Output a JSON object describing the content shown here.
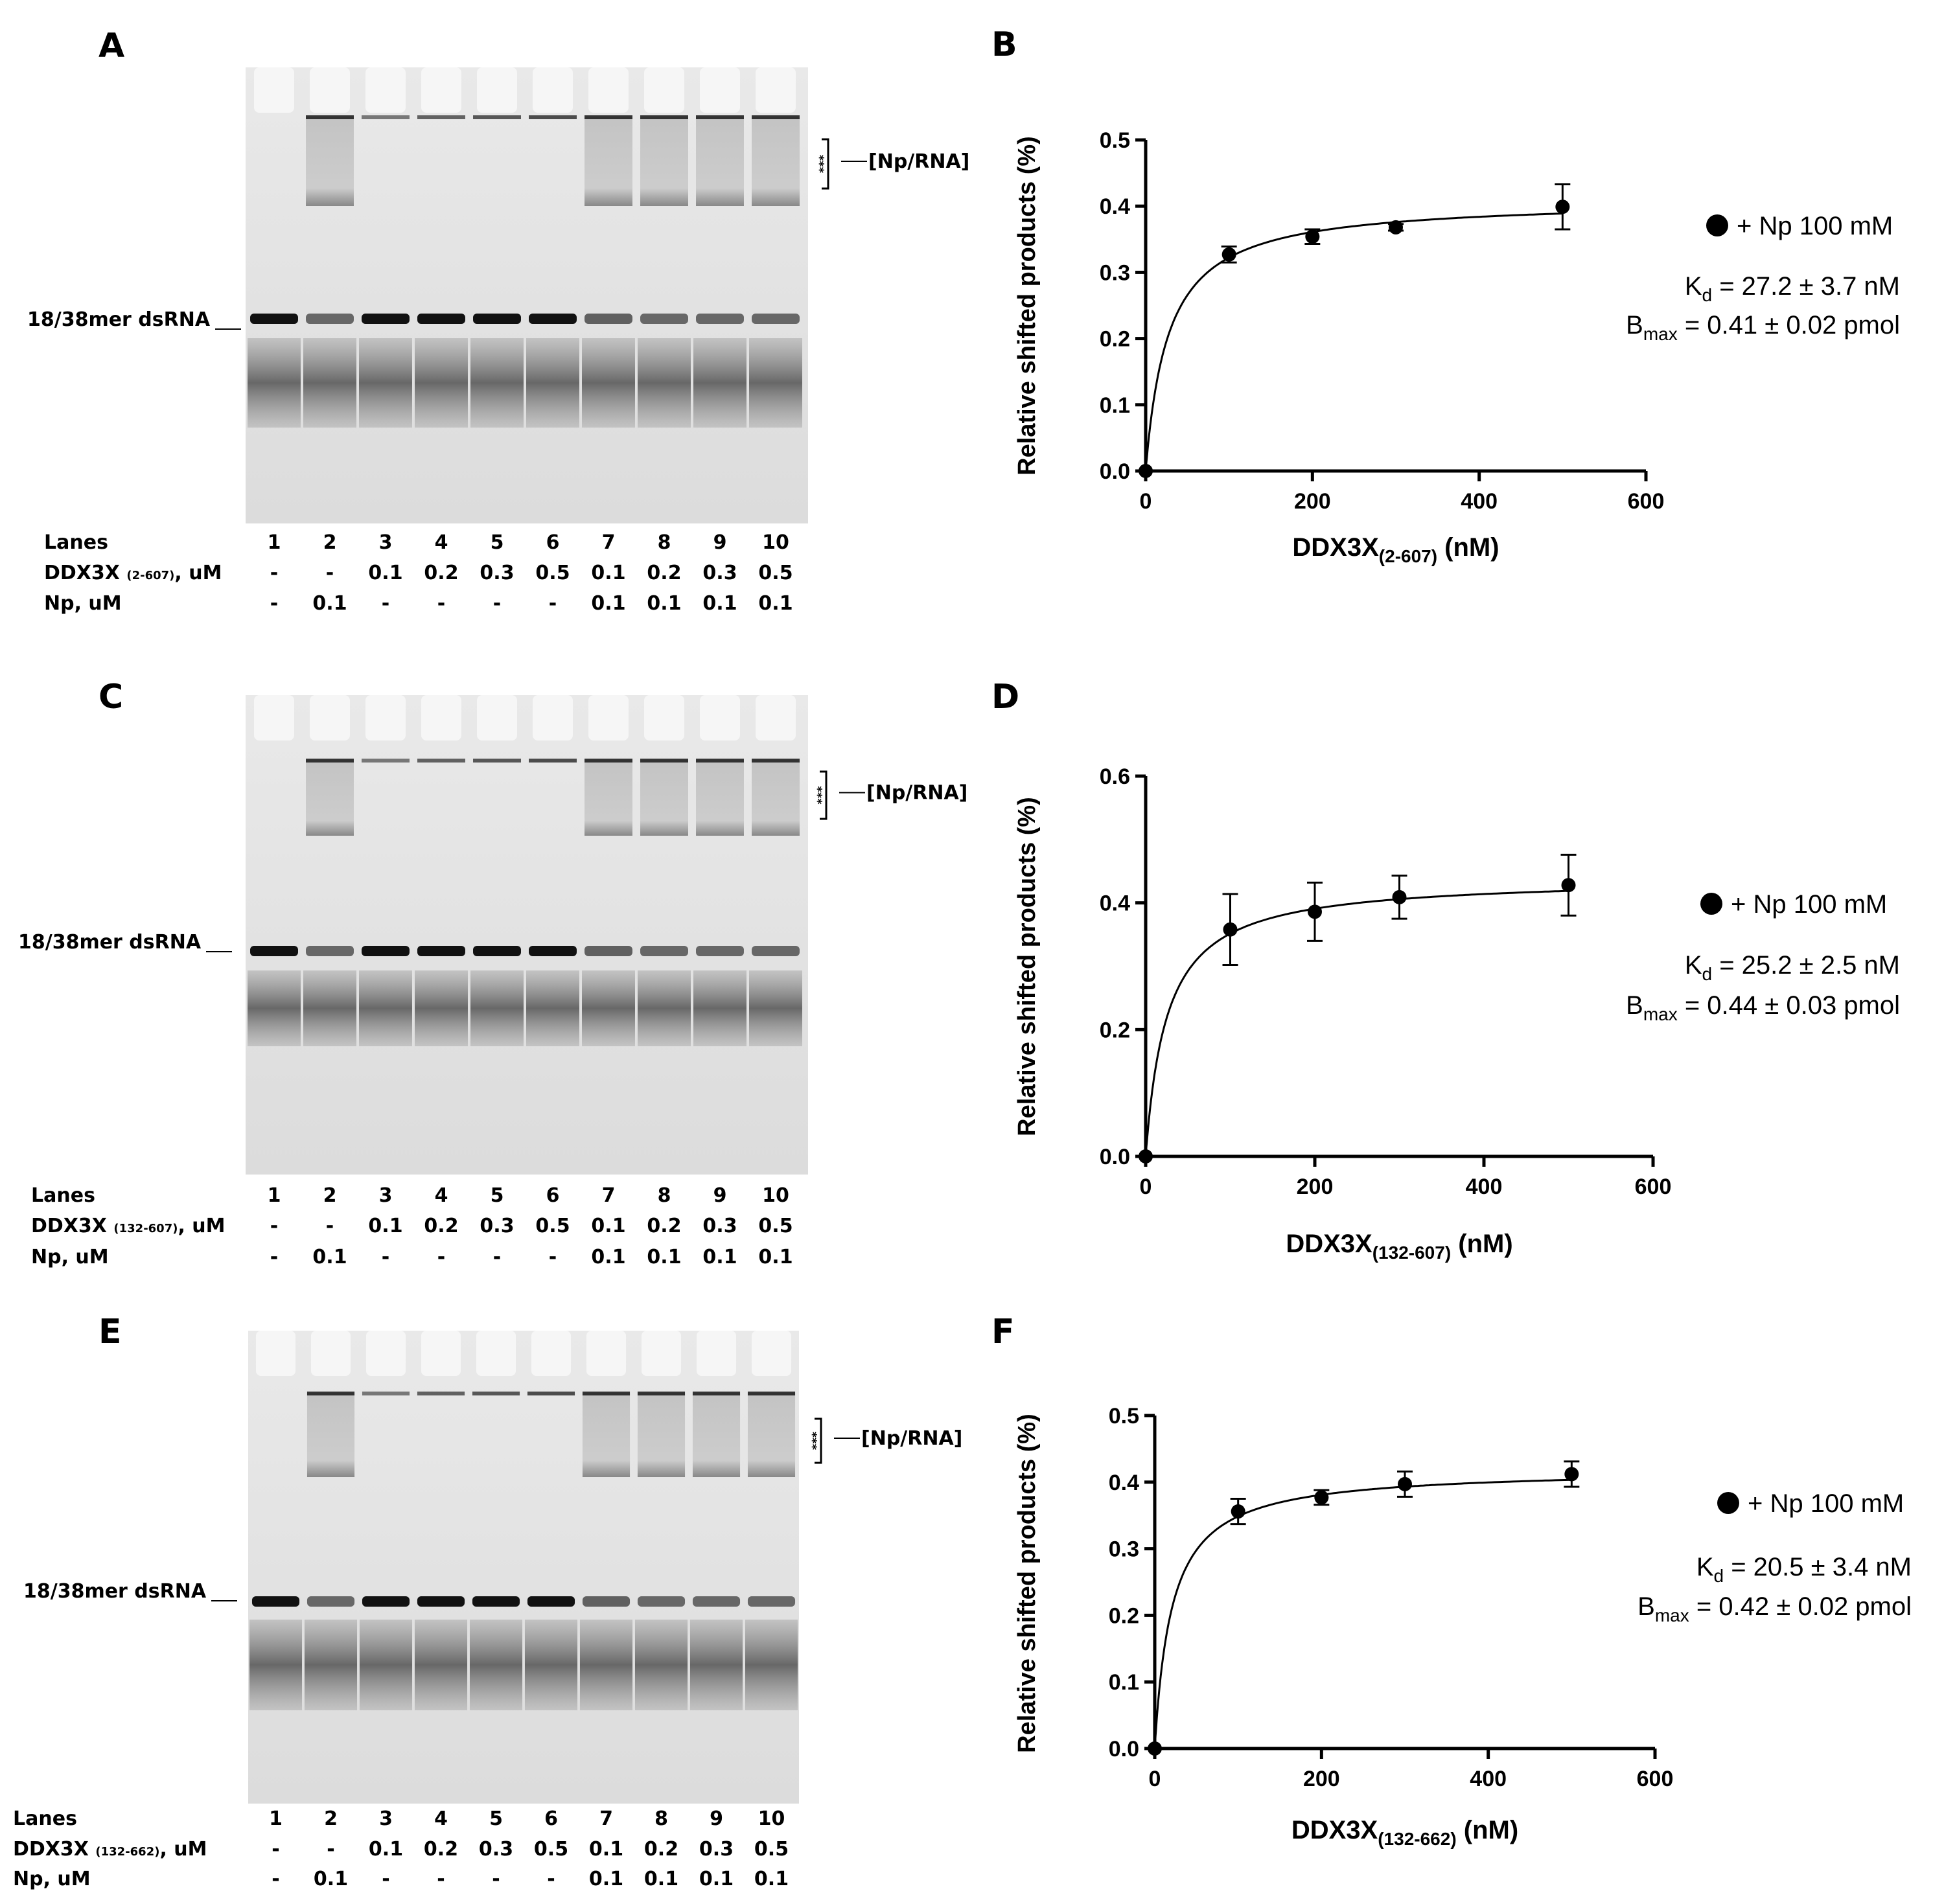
{
  "common": {
    "band_label": "18/38mer dsRNA",
    "complex_label": "[Np/RNA]",
    "stars": "***",
    "lanes_label": "Lanes",
    "np_label": "Np, uM",
    "ylabel": "Relative shifted products (%)",
    "legend_label": "+ Np 100 mM",
    "kd_prefix": "K",
    "kd_sub": "d",
    "bmax_prefix": "B",
    "bmax_sub": "max",
    "lanes": [
      "1",
      "2",
      "3",
      "4",
      "5",
      "6",
      "7",
      "8",
      "9",
      "10"
    ],
    "ddx_values": [
      "-",
      "-",
      "0.1",
      "0.2",
      "0.3",
      "0.5",
      "0.1",
      "0.2",
      "0.3",
      "0.5"
    ],
    "np_values": [
      "-",
      "0.1",
      "-",
      "-",
      "-",
      "-",
      "0.1",
      "0.1",
      "0.1",
      "0.1"
    ]
  },
  "gels": [
    {
      "panel": "A",
      "ddx_label_pre": "DDX3X ",
      "ddx_label_sub": "(2-607)",
      "ddx_label_post": ", uM"
    },
    {
      "panel": "C",
      "ddx_label_pre": "DDX3X ",
      "ddx_label_sub": "(132-607)",
      "ddx_label_post": ", uM"
    },
    {
      "panel": "E",
      "ddx_label_pre": "DDX3X ",
      "ddx_label_sub": "(132-662)",
      "ddx_label_post": ", uM"
    }
  ],
  "chart_data": [
    {
      "panel": "B",
      "type": "scatter",
      "title": "",
      "xlabel_main": "DDX3X",
      "xlabel_sub": "(2-607)",
      "xlabel_unit": " (nM)",
      "ylabel": "Relative shifted products (%)",
      "xlim": [
        0,
        600
      ],
      "ylim": [
        0,
        0.5
      ],
      "xticks": [
        0,
        200,
        400,
        600
      ],
      "yticks": [
        0.0,
        0.1,
        0.2,
        0.3,
        0.4,
        0.5
      ],
      "ytick_labels": [
        "0.0",
        "0.1",
        "0.2",
        "0.3",
        "0.4",
        "0.5"
      ],
      "series": [
        {
          "name": "+ Np 100 mM",
          "x": [
            0,
            100,
            200,
            300,
            500
          ],
          "y": [
            0.0,
            0.327,
            0.354,
            0.368,
            0.399
          ],
          "err": [
            0,
            0.012,
            0.011,
            0.005,
            0.034
          ]
        }
      ],
      "fit": {
        "model": "one-site saturation",
        "kd": 27.2,
        "bmax": 0.41
      },
      "kd_text": " = 27.2 ± 3.7 nM",
      "bmax_text": " =  0.41 ± 0.02 pmol",
      "grid": false,
      "legend": "right"
    },
    {
      "panel": "D",
      "type": "scatter",
      "title": "",
      "xlabel_main": "DDX3X",
      "xlabel_sub": "(132-607)",
      "xlabel_unit": " (nM)",
      "ylabel": "Relative shifted products (%)",
      "xlim": [
        0,
        600
      ],
      "ylim": [
        0,
        0.6
      ],
      "xticks": [
        0,
        200,
        400,
        600
      ],
      "yticks": [
        0.0,
        0.2,
        0.4,
        0.6
      ],
      "ytick_labels": [
        "0.0",
        "0.2",
        "0.4",
        "0.6"
      ],
      "series": [
        {
          "name": "+ Np 100 mM",
          "x": [
            0,
            100,
            200,
            300,
            500
          ],
          "y": [
            0.0,
            0.358,
            0.386,
            0.409,
            0.428
          ],
          "err": [
            0,
            0.056,
            0.046,
            0.034,
            0.048
          ]
        }
      ],
      "fit": {
        "model": "one-site saturation",
        "kd": 25.2,
        "bmax": 0.44
      },
      "kd_text": " = 25.2 ± 2.5 nM",
      "bmax_text": " =  0.44 ± 0.03 pmol",
      "grid": false,
      "legend": "right"
    },
    {
      "panel": "F",
      "type": "scatter",
      "title": "",
      "xlabel_main": "DDX3X",
      "xlabel_sub": "(132-662)",
      "xlabel_unit": " (nM)",
      "ylabel": "Relative shifted products (%)",
      "xlim": [
        0,
        600
      ],
      "ylim": [
        0,
        0.5
      ],
      "xticks": [
        0,
        200,
        400,
        600
      ],
      "yticks": [
        0.0,
        0.1,
        0.2,
        0.3,
        0.4,
        0.5
      ],
      "ytick_labels": [
        "0.0",
        "0.1",
        "0.2",
        "0.3",
        "0.4",
        "0.5"
      ],
      "series": [
        {
          "name": "+ Np 100 mM",
          "x": [
            0,
            100,
            200,
            300,
            500
          ],
          "y": [
            0.0,
            0.356,
            0.377,
            0.397,
            0.412
          ],
          "err": [
            0,
            0.019,
            0.011,
            0.019,
            0.019
          ]
        }
      ],
      "fit": {
        "model": "one-site saturation",
        "kd": 20.5,
        "bmax": 0.42
      },
      "kd_text": " = 20.5 ± 3.4 nM",
      "bmax_text": " =  0.42 ± 0.02 pmol",
      "grid": false,
      "legend": "right"
    }
  ]
}
